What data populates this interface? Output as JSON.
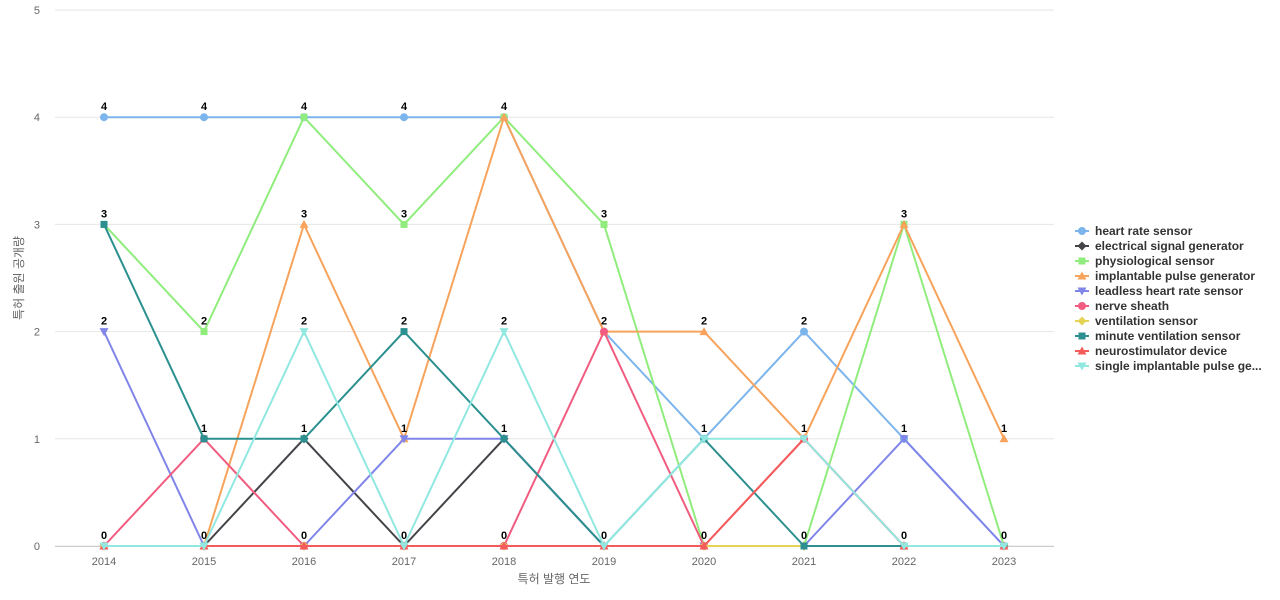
{
  "chart_data": {
    "type": "line",
    "title": "",
    "xlabel": "특허 발행 연도",
    "ylabel": "특허 출원 공개량",
    "x": [
      "2014",
      "2015",
      "2016",
      "2017",
      "2018",
      "2019",
      "2020",
      "2021",
      "2022",
      "2023"
    ],
    "ylim": [
      0,
      5
    ],
    "yticks": [
      "0",
      "1",
      "2",
      "3",
      "4",
      "5"
    ],
    "grid": true,
    "legend_position": "right",
    "series": [
      {
        "name": "heart rate sensor",
        "legend_label": "heart rate sensor",
        "color": "#7cb5ec",
        "marker": "circle",
        "values": [
          4,
          4,
          4,
          4,
          4,
          2,
          1,
          2,
          1,
          0
        ]
      },
      {
        "name": "electrical signal generator",
        "legend_label": "electrical signal generator",
        "color": "#434348",
        "marker": "diamond",
        "values": [
          0,
          0,
          1,
          0,
          1,
          0,
          0,
          0,
          0,
          0
        ]
      },
      {
        "name": "physiological sensor",
        "legend_label": "physiological sensor",
        "color": "#90ed7d",
        "marker": "square",
        "values": [
          3,
          2,
          4,
          3,
          4,
          3,
          0,
          0,
          3,
          0
        ]
      },
      {
        "name": "implantable pulse generator",
        "legend_label": "implantable pulse generator",
        "color": "#f7a35c",
        "marker": "triangle",
        "values": [
          0,
          0,
          3,
          1,
          4,
          2,
          2,
          1,
          3,
          1
        ]
      },
      {
        "name": "leadless heart rate sensor",
        "legend_label": "leadless heart rate sensor",
        "color": "#8085e9",
        "marker": "triangle-down",
        "values": [
          2,
          0,
          0,
          1,
          1,
          0,
          0,
          0,
          1,
          0
        ]
      },
      {
        "name": "nerve sheath",
        "legend_label": "nerve sheath",
        "color": "#f15c80",
        "marker": "circle",
        "values": [
          0,
          1,
          0,
          0,
          0,
          2,
          0,
          1,
          0,
          0
        ]
      },
      {
        "name": "ventilation sensor",
        "legend_label": "ventilation sensor",
        "color": "#e4d354",
        "marker": "diamond",
        "values": [
          0,
          0,
          0,
          0,
          0,
          0,
          0,
          0,
          0,
          0
        ]
      },
      {
        "name": "minute ventilation sensor",
        "legend_label": "minute ventilation sensor",
        "color": "#2b908f",
        "marker": "square",
        "values": [
          3,
          1,
          1,
          2,
          1,
          0,
          1,
          0,
          0,
          0
        ]
      },
      {
        "name": "neurostimulator device",
        "legend_label": "neurostimulator device",
        "color": "#f45b5b",
        "marker": "triangle",
        "values": [
          0,
          0,
          0,
          0,
          0,
          0,
          0,
          1,
          0,
          0
        ]
      },
      {
        "name": "single implantable pulse generator",
        "legend_label": "single implantable pulse ge...",
        "color": "#91e8e1",
        "marker": "triangle-down",
        "values": [
          0,
          0,
          2,
          0,
          2,
          0,
          1,
          1,
          0,
          0
        ]
      }
    ],
    "data_labels": [
      {
        "x": "2014",
        "y": 4,
        "text": "4"
      },
      {
        "x": "2015",
        "y": 4,
        "text": "4"
      },
      {
        "x": "2016",
        "y": 4,
        "text": "4"
      },
      {
        "x": "2017",
        "y": 4,
        "text": "4"
      },
      {
        "x": "2018",
        "y": 4,
        "text": "4"
      },
      {
        "x": "2014",
        "y": 3,
        "text": "3"
      },
      {
        "x": "2016",
        "y": 3,
        "text": "3"
      },
      {
        "x": "2017",
        "y": 3,
        "text": "3"
      },
      {
        "x": "2019",
        "y": 3,
        "text": "3"
      },
      {
        "x": "2022",
        "y": 3,
        "text": "3"
      },
      {
        "x": "2014",
        "y": 2,
        "text": "2"
      },
      {
        "x": "2015",
        "y": 2,
        "text": "2"
      },
      {
        "x": "2016",
        "y": 2,
        "text": "2"
      },
      {
        "x": "2017",
        "y": 2,
        "text": "2"
      },
      {
        "x": "2018",
        "y": 2,
        "text": "2"
      },
      {
        "x": "2019",
        "y": 2,
        "text": "2"
      },
      {
        "x": "2020",
        "y": 2,
        "text": "2"
      },
      {
        "x": "2021",
        "y": 2,
        "text": "2"
      },
      {
        "x": "2015",
        "y": 1,
        "text": "1"
      },
      {
        "x": "2016",
        "y": 1,
        "text": "1"
      },
      {
        "x": "2017",
        "y": 1,
        "text": "1"
      },
      {
        "x": "2018",
        "y": 1,
        "text": "1"
      },
      {
        "x": "2020",
        "y": 1,
        "text": "1"
      },
      {
        "x": "2021",
        "y": 1,
        "text": "1"
      },
      {
        "x": "2022",
        "y": 1,
        "text": "1"
      },
      {
        "x": "2023",
        "y": 1,
        "text": "1"
      },
      {
        "x": "2014",
        "y": 0,
        "text": "0"
      },
      {
        "x": "2015",
        "y": 0,
        "text": "0"
      },
      {
        "x": "2016",
        "y": 0,
        "text": "0"
      },
      {
        "x": "2017",
        "y": 0,
        "text": "0"
      },
      {
        "x": "2018",
        "y": 0,
        "text": "0"
      },
      {
        "x": "2019",
        "y": 0,
        "text": "0"
      },
      {
        "x": "2020",
        "y": 0,
        "text": "0"
      },
      {
        "x": "2021",
        "y": 0,
        "text": "0"
      },
      {
        "x": "2022",
        "y": 0,
        "text": "0"
      },
      {
        "x": "2023",
        "y": 0,
        "text": "0"
      }
    ],
    "gridline_color": "#e6e6e6"
  }
}
